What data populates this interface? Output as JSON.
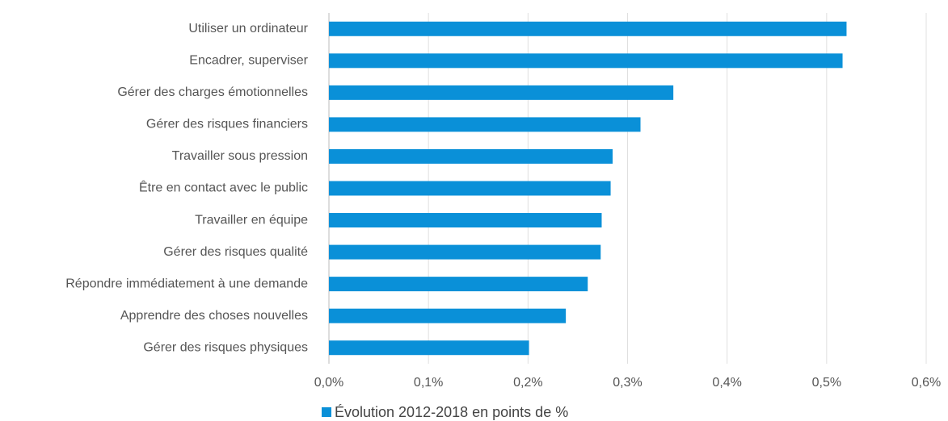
{
  "chart_data": {
    "type": "bar",
    "orientation": "horizontal",
    "categories": [
      "Utiliser un ordinateur",
      "Encadrer, superviser",
      "Gérer des charges émotionnelles",
      "Gérer des risques financiers",
      "Travailler sous pression",
      "Être en contact avec le public",
      "Travailler en équipe",
      "Gérer des risques qualité",
      "Répondre immédiatement à une demande",
      "Apprendre des choses nouvelles",
      "Gérer des risques physiques"
    ],
    "series": [
      {
        "name": "Évolution 2012-2018 en points de %",
        "color": "#0a90d8",
        "values": [
          0.52,
          0.516,
          0.346,
          0.313,
          0.285,
          0.283,
          0.274,
          0.273,
          0.26,
          0.238,
          0.201
        ]
      }
    ],
    "xlim": [
      0,
      0.6
    ],
    "xticks": [
      {
        "value": 0,
        "label": "0,0%"
      },
      {
        "value": 0.1,
        "label": "0,1%"
      },
      {
        "value": 0.2,
        "label": "0,2%"
      },
      {
        "value": 0.3,
        "label": "0,3%"
      },
      {
        "value": 0.4,
        "label": "0,4%"
      },
      {
        "value": 0.5,
        "label": "0,5%"
      },
      {
        "value": 0.6,
        "label": "0,6%"
      }
    ],
    "grid": true,
    "legend": "bottom"
  }
}
